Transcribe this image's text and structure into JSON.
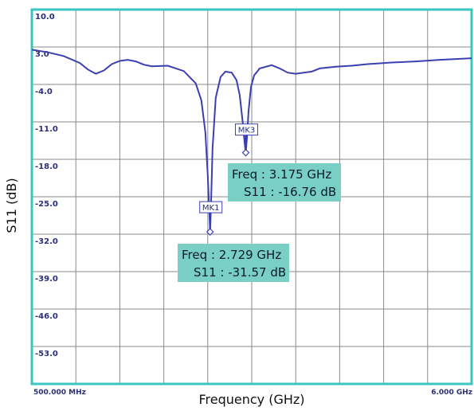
{
  "chart_data": {
    "type": "line",
    "xlabel": "Frequency (GHz)",
    "ylabel": "S11 (dB)",
    "x_start_label": "500.000 MHz",
    "x_end_label": "6.000 GHz",
    "xlim": [
      0.5,
      6.0
    ],
    "ylim": [
      -60.0,
      10.0
    ],
    "yticks": [
      "10.0",
      "3.0",
      "-4.0",
      "-11.0",
      "-18.0",
      "-25.0",
      "-32.0",
      "-39.0",
      "-46.0",
      "-53.0"
    ],
    "grid": true,
    "colors": {
      "frame": "#39c6c0",
      "grid": "#8a8a8a",
      "trace": "#3b3fb0",
      "annotation_bg": "#79cfc3"
    },
    "series": [
      {
        "x": [
          0.5,
          0.7,
          0.9,
          1.1,
          1.2,
          1.3,
          1.4,
          1.5,
          1.6,
          1.7,
          1.8,
          1.9,
          2.0,
          2.2,
          2.4,
          2.55,
          2.62,
          2.67,
          2.7,
          2.72,
          2.729,
          2.74,
          2.76,
          2.8,
          2.86,
          2.92,
          3.0,
          3.06,
          3.1,
          3.14,
          3.16,
          3.175,
          3.19,
          3.21,
          3.24,
          3.28,
          3.35,
          3.5,
          3.6,
          3.7,
          3.8,
          4.0,
          4.1,
          4.3,
          4.5,
          4.7,
          5.0,
          5.3,
          5.6,
          6.0
        ],
        "y": [
          2.5,
          2.0,
          1.3,
          0.0,
          -1.2,
          -2.0,
          -1.4,
          -0.2,
          0.4,
          0.6,
          0.3,
          -0.3,
          -0.6,
          -0.5,
          -1.5,
          -3.8,
          -7.0,
          -13.0,
          -21.0,
          -28.0,
          -31.57,
          -27.0,
          -16.0,
          -6.5,
          -2.6,
          -1.6,
          -1.8,
          -3.2,
          -6.0,
          -11.5,
          -14.8,
          -16.76,
          -14.0,
          -9.0,
          -4.5,
          -2.3,
          -1.0,
          -0.4,
          -1.0,
          -1.8,
          -2.0,
          -1.6,
          -1.0,
          -0.7,
          -0.5,
          -0.2,
          0.1,
          0.3,
          0.6,
          0.9
        ]
      }
    ],
    "markers": [
      {
        "label": "MK1",
        "x": 2.729,
        "y": -31.57,
        "freq_text": "Freq : 2.729 GHz",
        "s11_text": "S11 : -31.57 dB"
      },
      {
        "label": "MK3",
        "x": 3.175,
        "y": -16.76,
        "freq_text": "Freq : 3.175 GHz",
        "s11_text": "S11 : -16.76 dB"
      }
    ]
  }
}
